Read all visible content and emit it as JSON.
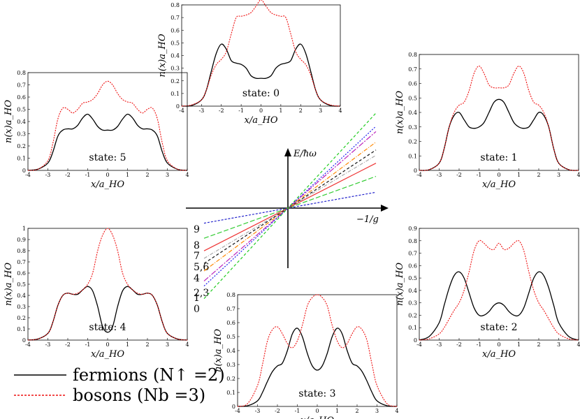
{
  "chart_data": [
    {
      "type": "line",
      "state_label": "state: 0",
      "xlabel": "x/a_HO",
      "ylabel": "n(x)a_HO",
      "xlim": [
        -4,
        4
      ],
      "ylim": [
        0,
        0.8
      ],
      "xticks": [
        "-4",
        "-3",
        "-2",
        "-1",
        "0",
        "1",
        "2",
        "3",
        "4"
      ],
      "yticks": [
        "0",
        "0.1",
        "0.2",
        "0.3",
        "0.4",
        "0.5",
        "0.6",
        "0.7",
        "0.8"
      ],
      "x": [
        -4,
        -3.5,
        -3,
        -2.75,
        -2.5,
        -2.25,
        -2,
        -1.75,
        -1.5,
        -1.25,
        -1,
        -0.75,
        -0.5,
        -0.25,
        0,
        0.25,
        0.5,
        0.75,
        1,
        1.25,
        1.5,
        1.75,
        2,
        2.25,
        2.5,
        2.75,
        3,
        3.5,
        4
      ],
      "series": [
        {
          "name": "fermions",
          "values": [
            0,
            0.005,
            0.05,
            0.13,
            0.28,
            0.42,
            0.49,
            0.45,
            0.36,
            0.34,
            0.33,
            0.3,
            0.24,
            0.22,
            0.22,
            0.22,
            0.24,
            0.3,
            0.33,
            0.34,
            0.36,
            0.45,
            0.49,
            0.42,
            0.28,
            0.13,
            0.05,
            0.005,
            0
          ]
        },
        {
          "name": "bosons",
          "values": [
            0,
            0.01,
            0.05,
            0.13,
            0.25,
            0.33,
            0.37,
            0.43,
            0.57,
            0.7,
            0.71,
            0.72,
            0.74,
            0.79,
            0.84,
            0.79,
            0.74,
            0.72,
            0.71,
            0.7,
            0.57,
            0.43,
            0.37,
            0.33,
            0.25,
            0.13,
            0.05,
            0.01,
            0
          ]
        }
      ]
    },
    {
      "type": "line",
      "state_label": "state: 1",
      "xlabel": "x/a_HO",
      "ylabel": "n(x)a_HO",
      "xlim": [
        -4,
        4
      ],
      "ylim": [
        0,
        0.8
      ],
      "xticks": [
        "-4",
        "-3",
        "-2",
        "-1",
        "0",
        "1",
        "2",
        "3",
        "4"
      ],
      "yticks": [
        "0",
        "0.1",
        "0.2",
        "0.3",
        "0.4",
        "0.5",
        "0.6",
        "0.7",
        "0.8"
      ],
      "x": [
        -4,
        -3.5,
        -3,
        -2.75,
        -2.5,
        -2.25,
        -2,
        -1.75,
        -1.5,
        -1.25,
        -1,
        -0.75,
        -0.5,
        -0.25,
        0,
        0.25,
        0.5,
        0.75,
        1,
        1.25,
        1.5,
        1.75,
        2,
        2.25,
        2.5,
        2.75,
        3,
        3.5,
        4
      ],
      "series": [
        {
          "name": "fermions",
          "values": [
            0,
            0.005,
            0.05,
            0.15,
            0.3,
            0.38,
            0.4,
            0.35,
            0.3,
            0.29,
            0.3,
            0.33,
            0.4,
            0.47,
            0.49,
            0.47,
            0.4,
            0.33,
            0.3,
            0.29,
            0.3,
            0.35,
            0.4,
            0.38,
            0.3,
            0.15,
            0.05,
            0.005,
            0
          ]
        },
        {
          "name": "bosons",
          "values": [
            0,
            0.005,
            0.05,
            0.15,
            0.3,
            0.4,
            0.45,
            0.47,
            0.55,
            0.67,
            0.72,
            0.67,
            0.59,
            0.57,
            0.57,
            0.57,
            0.59,
            0.67,
            0.72,
            0.67,
            0.55,
            0.47,
            0.45,
            0.4,
            0.3,
            0.15,
            0.05,
            0.005,
            0
          ]
        }
      ]
    },
    {
      "type": "line",
      "state_label": "state: 2",
      "xlabel": "x/a_HO",
      "ylabel": "n(x)a_HO",
      "xlim": [
        -4,
        4
      ],
      "ylim": [
        0,
        0.9
      ],
      "xticks": [
        "-4",
        "-3",
        "-2",
        "-1",
        "0",
        "1",
        "2",
        "3",
        "4"
      ],
      "yticks": [
        "0",
        "0.1",
        "0.2",
        "0.3",
        "0.4",
        "0.5",
        "0.6",
        "0.7",
        "0.8",
        "0.9"
      ],
      "x": [
        -4,
        -3.5,
        -3,
        -2.75,
        -2.5,
        -2.25,
        -2,
        -1.75,
        -1.5,
        -1.25,
        -1,
        -0.75,
        -0.5,
        -0.25,
        0,
        0.25,
        0.5,
        0.75,
        1,
        1.25,
        1.5,
        1.75,
        2,
        2.25,
        2.5,
        2.75,
        3,
        3.5,
        4
      ],
      "series": [
        {
          "name": "fermions",
          "values": [
            0,
            0.03,
            0.14,
            0.28,
            0.42,
            0.52,
            0.55,
            0.5,
            0.38,
            0.26,
            0.2,
            0.2,
            0.23,
            0.28,
            0.3,
            0.28,
            0.23,
            0.2,
            0.2,
            0.26,
            0.38,
            0.5,
            0.55,
            0.52,
            0.42,
            0.28,
            0.14,
            0.03,
            0
          ]
        },
        {
          "name": "bosons",
          "values": [
            0,
            0.01,
            0.05,
            0.1,
            0.17,
            0.24,
            0.3,
            0.4,
            0.55,
            0.72,
            0.8,
            0.78,
            0.74,
            0.73,
            0.78,
            0.73,
            0.74,
            0.78,
            0.8,
            0.72,
            0.55,
            0.4,
            0.3,
            0.24,
            0.17,
            0.1,
            0.05,
            0.01,
            0
          ]
        }
      ]
    },
    {
      "type": "line",
      "state_label": "state: 3",
      "xlabel": "x/a_HO",
      "ylabel": "n(x)a_HO",
      "xlim": [
        -4,
        4
      ],
      "ylim": [
        0,
        0.8
      ],
      "xticks": [
        "-4",
        "-3",
        "-2",
        "-1",
        "0",
        "1",
        "2",
        "3",
        "4"
      ],
      "yticks": [
        "0",
        "0.1",
        "0.2",
        "0.3",
        "0.4",
        "0.5",
        "0.6",
        "0.7",
        "0.8"
      ],
      "x": [
        -4,
        -3.5,
        -3,
        -2.75,
        -2.5,
        -2.25,
        -2,
        -1.75,
        -1.5,
        -1.25,
        -1,
        -0.75,
        -0.5,
        -0.25,
        0,
        0.25,
        0.5,
        0.75,
        1,
        1.25,
        1.5,
        1.75,
        2,
        2.25,
        2.5,
        2.75,
        3,
        3.5,
        4
      ],
      "series": [
        {
          "name": "fermions",
          "values": [
            0,
            0.005,
            0.04,
            0.1,
            0.18,
            0.25,
            0.29,
            0.31,
            0.4,
            0.52,
            0.56,
            0.5,
            0.38,
            0.29,
            0.26,
            0.29,
            0.38,
            0.5,
            0.56,
            0.52,
            0.4,
            0.31,
            0.29,
            0.25,
            0.18,
            0.1,
            0.04,
            0.005,
            0
          ]
        },
        {
          "name": "bosons",
          "values": [
            0,
            0.02,
            0.15,
            0.3,
            0.47,
            0.55,
            0.57,
            0.52,
            0.45,
            0.42,
            0.47,
            0.58,
            0.72,
            0.78,
            0.8,
            0.78,
            0.72,
            0.58,
            0.47,
            0.42,
            0.45,
            0.52,
            0.57,
            0.55,
            0.47,
            0.3,
            0.15,
            0.02,
            0
          ]
        }
      ]
    },
    {
      "type": "line",
      "state_label": "state: 4",
      "xlabel": "x/a_HO",
      "ylabel": "n(x)a_HO",
      "xlim": [
        -4,
        4
      ],
      "ylim": [
        0,
        1.0
      ],
      "xticks": [
        "-4",
        "-3",
        "-2",
        "-1",
        "0",
        "1",
        "2",
        "3",
        "4"
      ],
      "yticks": [
        "0",
        "0.1",
        "0.2",
        "0.3",
        "0.4",
        "0.5",
        "0.6",
        "0.7",
        "0.8",
        "0.9",
        "1"
      ],
      "x": [
        -4,
        -3.5,
        -3,
        -2.75,
        -2.5,
        -2.25,
        -2,
        -1.75,
        -1.5,
        -1.25,
        -1,
        -0.75,
        -0.5,
        -0.25,
        0,
        0.25,
        0.5,
        0.75,
        1,
        1.25,
        1.5,
        1.75,
        2,
        2.25,
        2.5,
        2.75,
        3,
        3.5,
        4
      ],
      "series": [
        {
          "name": "fermions",
          "values": [
            0,
            0.01,
            0.06,
            0.16,
            0.31,
            0.4,
            0.42,
            0.41,
            0.41,
            0.45,
            0.48,
            0.44,
            0.3,
            0.12,
            0.07,
            0.12,
            0.3,
            0.44,
            0.48,
            0.45,
            0.41,
            0.41,
            0.42,
            0.4,
            0.31,
            0.16,
            0.06,
            0.01,
            0
          ]
        },
        {
          "name": "bosons",
          "values": [
            0,
            0.01,
            0.06,
            0.16,
            0.31,
            0.4,
            0.42,
            0.41,
            0.42,
            0.45,
            0.5,
            0.6,
            0.8,
            0.94,
            1.0,
            0.94,
            0.8,
            0.6,
            0.5,
            0.45,
            0.42,
            0.41,
            0.42,
            0.4,
            0.31,
            0.16,
            0.06,
            0.01,
            0
          ]
        }
      ]
    },
    {
      "type": "line",
      "state_label": "state: 5",
      "xlabel": "x/a_HO",
      "ylabel": "n(x)a_HO",
      "xlim": [
        -4,
        4
      ],
      "ylim": [
        0,
        0.8
      ],
      "xticks": [
        "-4",
        "-3",
        "-2",
        "-1",
        "0",
        "1",
        "2",
        "3",
        "4"
      ],
      "yticks": [
        "0",
        "0.1",
        "0.2",
        "0.3",
        "0.4",
        "0.5",
        "0.6",
        "0.7",
        "0.8"
      ],
      "x": [
        -4,
        -3.5,
        -3,
        -2.75,
        -2.5,
        -2.25,
        -2,
        -1.75,
        -1.5,
        -1.25,
        -1,
        -0.75,
        -0.5,
        -0.25,
        0,
        0.25,
        0.5,
        0.75,
        1,
        1.25,
        1.5,
        1.75,
        2,
        2.25,
        2.5,
        2.75,
        3,
        3.5,
        4
      ],
      "series": [
        {
          "name": "fermions",
          "values": [
            0,
            0.01,
            0.06,
            0.15,
            0.28,
            0.33,
            0.34,
            0.34,
            0.37,
            0.43,
            0.46,
            0.42,
            0.36,
            0.33,
            0.33,
            0.33,
            0.36,
            0.42,
            0.46,
            0.43,
            0.37,
            0.34,
            0.34,
            0.33,
            0.28,
            0.15,
            0.06,
            0.01,
            0
          ]
        },
        {
          "name": "bosons",
          "values": [
            0,
            0.01,
            0.08,
            0.22,
            0.42,
            0.51,
            0.5,
            0.47,
            0.5,
            0.55,
            0.56,
            0.58,
            0.63,
            0.7,
            0.73,
            0.7,
            0.63,
            0.58,
            0.56,
            0.55,
            0.5,
            0.47,
            0.5,
            0.51,
            0.42,
            0.22,
            0.08,
            0.01,
            0
          ]
        }
      ]
    }
  ],
  "spectrum": {
    "ylabel": "E/ħω",
    "xlabel": "−1/g",
    "lines": [
      {
        "label": "9",
        "slope": 0.3,
        "color": "#2222cc",
        "dash": "3,2"
      },
      {
        "label": "8",
        "slope": 0.6,
        "color": "#33cc33",
        "dash": "7,3"
      },
      {
        "label": "7",
        "slope": 0.85,
        "color": "#ee3333",
        "dash": ""
      },
      {
        "label": "",
        "slope": 1.0,
        "color": "#aaaaaa",
        "dash": "5,2,1,2"
      },
      {
        "label": "5,6",
        "slope": 1.1,
        "color": "#111111",
        "dash": "4,3"
      },
      {
        "label": "4",
        "slope": 1.25,
        "color": "#ff8800",
        "dash": "6,2,1,2"
      },
      {
        "label": "2,3",
        "slope": 1.45,
        "color": "#bb22bb",
        "dash": "8,2,2,2"
      },
      {
        "label": "1",
        "slope": 1.55,
        "color": "#2222ee",
        "dash": "2,2"
      },
      {
        "label": "0",
        "slope": 1.8,
        "color": "#22cc22",
        "dash": "4,3"
      }
    ]
  },
  "legend": {
    "fermions": "fermions (N↑ =2)",
    "bosons": "bosons (Nb =3)"
  },
  "colors": {
    "fermions": "#000000",
    "bosons": "#ee1111"
  }
}
